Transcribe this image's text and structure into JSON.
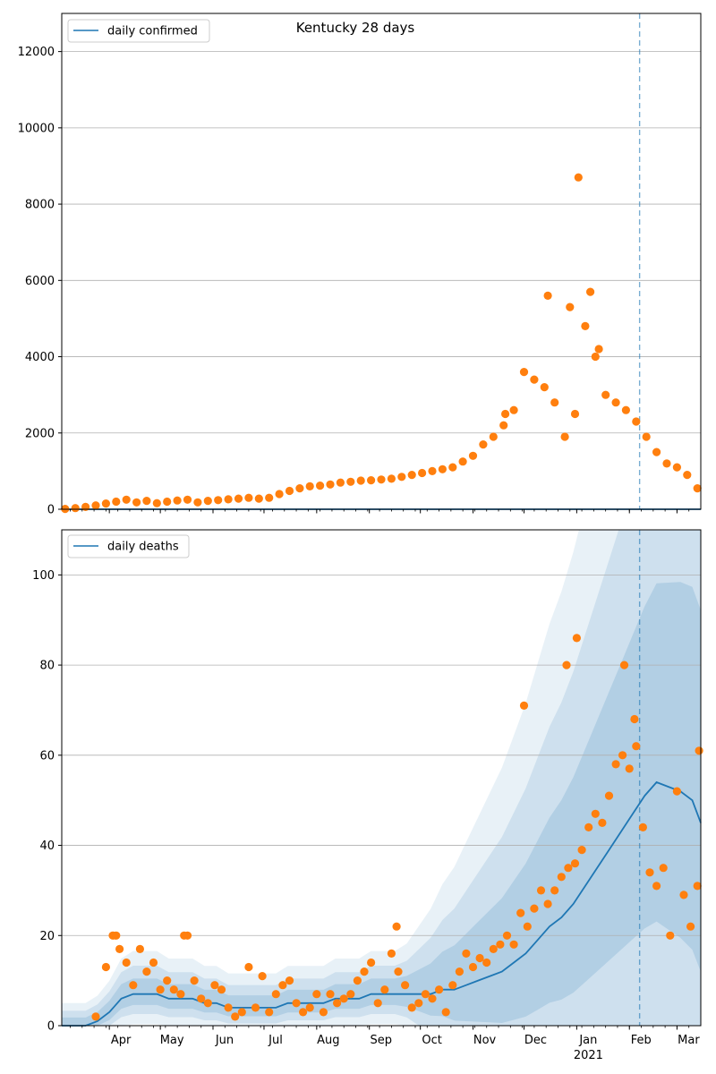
{
  "chart_data": [
    {
      "type": "scatter",
      "title": "Kentucky 28 days",
      "legend": [
        "daily confirmed"
      ],
      "legend_position": "top-left",
      "grid": "horizontal",
      "ylim": [
        0,
        13000
      ],
      "yticks": [
        0,
        2000,
        4000,
        6000,
        8000,
        10000,
        12000
      ],
      "xlim": [
        "2020-03-04",
        "2021-03-15"
      ],
      "vline": "2021-02-07",
      "series": [
        {
          "name": "daily confirmed",
          "kind": "line",
          "x": [
            "2020-03-04",
            "2020-04-01",
            "2020-05-01",
            "2020-06-01",
            "2020-07-01",
            "2020-08-01",
            "2020-09-01",
            "2020-10-01",
            "2020-11-01",
            "2020-12-01",
            "2021-01-01",
            "2021-02-01",
            "2021-03-15"
          ],
          "y": [
            0,
            0,
            0,
            0,
            0,
            0,
            0,
            0,
            0,
            0,
            0,
            0,
            0
          ]
        },
        {
          "kind": "points",
          "x": [
            "2020-03-06",
            "2020-03-12",
            "2020-03-18",
            "2020-03-24",
            "2020-03-30",
            "2020-04-05",
            "2020-04-11",
            "2020-04-17",
            "2020-04-23",
            "2020-04-29",
            "2020-05-05",
            "2020-05-11",
            "2020-05-17",
            "2020-05-23",
            "2020-05-29",
            "2020-06-04",
            "2020-06-10",
            "2020-06-16",
            "2020-06-22",
            "2020-06-28",
            "2020-07-04",
            "2020-07-10",
            "2020-07-16",
            "2020-07-22",
            "2020-07-28",
            "2020-08-03",
            "2020-08-09",
            "2020-08-15",
            "2020-08-21",
            "2020-08-27",
            "2020-09-02",
            "2020-09-08",
            "2020-09-14",
            "2020-09-20",
            "2020-09-26",
            "2020-10-02",
            "2020-10-08",
            "2020-10-14",
            "2020-10-20",
            "2020-10-26",
            "2020-11-01",
            "2020-11-07",
            "2020-11-13",
            "2020-11-19",
            "2020-11-25",
            "2020-12-01",
            "2020-12-07",
            "2020-12-13",
            "2020-12-19",
            "2020-12-25",
            "2020-12-31",
            "2021-01-06",
            "2021-01-12",
            "2021-01-18",
            "2021-01-24",
            "2021-01-30",
            "2021-02-05",
            "2021-02-11",
            "2021-02-17",
            "2021-02-23",
            "2021-03-01",
            "2021-03-07",
            "2021-03-13",
            "2021-01-02",
            "2020-11-20",
            "2021-01-09",
            "2020-12-15",
            "2020-12-28",
            "2021-01-14"
          ],
          "y": [
            10,
            30,
            60,
            100,
            150,
            200,
            250,
            180,
            220,
            160,
            200,
            230,
            250,
            180,
            220,
            240,
            260,
            280,
            300,
            280,
            300,
            400,
            480,
            550,
            600,
            620,
            650,
            700,
            720,
            750,
            760,
            780,
            800,
            850,
            900,
            950,
            1000,
            1050,
            1100,
            1250,
            1400,
            1700,
            1900,
            2200,
            2600,
            3600,
            3400,
            3200,
            2800,
            1900,
            2500,
            4800,
            4000,
            3000,
            2800,
            2600,
            2300,
            1900,
            1500,
            1200,
            1100,
            900,
            550,
            8700,
            2500,
            5700,
            5600,
            5300,
            4200
          ]
        }
      ]
    },
    {
      "type": "line",
      "legend": [
        "daily deaths"
      ],
      "legend_position": "top-left",
      "grid": "horizontal",
      "ylim": [
        0,
        110
      ],
      "yticks": [
        0,
        20,
        40,
        60,
        80,
        100
      ],
      "xlim": [
        "2020-03-04",
        "2021-03-15"
      ],
      "xtick_labels": [
        "Apr",
        "May",
        "Jun",
        "Jul",
        "Aug",
        "Sep",
        "Oct",
        "Nov",
        "Dec",
        "Jan",
        "Feb",
        "Mar"
      ],
      "xtick_year_label": "2021",
      "vline": "2021-02-07",
      "series": [
        {
          "name": "daily deaths",
          "kind": "line",
          "x": [
            "2020-03-04",
            "2020-03-18",
            "2020-03-25",
            "2020-04-01",
            "2020-04-08",
            "2020-04-15",
            "2020-04-22",
            "2020-04-29",
            "2020-05-06",
            "2020-05-13",
            "2020-05-20",
            "2020-05-27",
            "2020-06-03",
            "2020-06-10",
            "2020-06-17",
            "2020-06-24",
            "2020-07-01",
            "2020-07-08",
            "2020-07-15",
            "2020-07-22",
            "2020-07-29",
            "2020-08-05",
            "2020-08-12",
            "2020-08-19",
            "2020-08-26",
            "2020-09-02",
            "2020-09-09",
            "2020-09-16",
            "2020-09-23",
            "2020-09-30",
            "2020-10-07",
            "2020-10-14",
            "2020-10-21",
            "2020-10-28",
            "2020-11-04",
            "2020-11-11",
            "2020-11-18",
            "2020-11-25",
            "2020-12-02",
            "2020-12-09",
            "2020-12-16",
            "2020-12-23",
            "2020-12-30",
            "2021-01-06",
            "2021-01-13",
            "2021-01-20",
            "2021-01-27",
            "2021-02-03",
            "2021-02-10",
            "2021-02-17",
            "2021-02-24",
            "2021-03-03",
            "2021-03-10",
            "2021-03-15"
          ],
          "y": [
            0,
            0,
            1,
            3,
            6,
            7,
            7,
            7,
            6,
            6,
            6,
            5,
            5,
            4,
            4,
            4,
            4,
            4,
            5,
            5,
            5,
            5,
            6,
            6,
            6,
            7,
            7,
            7,
            7,
            7,
            7,
            8,
            8,
            9,
            10,
            11,
            12,
            14,
            16,
            19,
            22,
            24,
            27,
            31,
            35,
            39,
            43,
            47,
            51,
            54,
            53,
            52,
            50,
            45
          ]
        },
        {
          "kind": "points",
          "x": [
            "2020-03-24",
            "2020-03-30",
            "2020-04-03",
            "2020-04-07",
            "2020-04-11",
            "2020-04-15",
            "2020-04-19",
            "2020-04-23",
            "2020-04-27",
            "2020-05-01",
            "2020-05-05",
            "2020-05-09",
            "2020-05-13",
            "2020-05-17",
            "2020-05-21",
            "2020-05-25",
            "2020-05-29",
            "2020-06-02",
            "2020-06-06",
            "2020-06-10",
            "2020-06-14",
            "2020-06-18",
            "2020-06-22",
            "2020-06-26",
            "2020-06-30",
            "2020-07-04",
            "2020-07-08",
            "2020-07-12",
            "2020-07-16",
            "2020-07-20",
            "2020-07-24",
            "2020-07-28",
            "2020-08-01",
            "2020-08-05",
            "2020-08-09",
            "2020-08-13",
            "2020-08-17",
            "2020-08-21",
            "2020-08-25",
            "2020-08-29",
            "2020-09-02",
            "2020-09-06",
            "2020-09-10",
            "2020-09-14",
            "2020-09-18",
            "2020-09-22",
            "2020-09-26",
            "2020-09-30",
            "2020-10-04",
            "2020-10-08",
            "2020-10-12",
            "2020-10-16",
            "2020-10-20",
            "2020-10-24",
            "2020-10-28",
            "2020-11-01",
            "2020-11-05",
            "2020-11-09",
            "2020-11-13",
            "2020-11-17",
            "2020-11-21",
            "2020-11-25",
            "2020-11-29",
            "2020-12-03",
            "2020-12-07",
            "2020-12-11",
            "2020-12-15",
            "2020-12-19",
            "2020-12-23",
            "2020-12-27",
            "2020-12-31",
            "2021-01-04",
            "2021-01-08",
            "2021-01-12",
            "2021-01-16",
            "2021-01-20",
            "2021-01-24",
            "2021-01-28",
            "2021-02-01",
            "2021-02-05",
            "2021-02-09",
            "2021-02-13",
            "2021-02-17",
            "2021-02-21",
            "2021-02-25",
            "2021-03-01",
            "2021-03-05",
            "2021-03-09",
            "2021-03-13",
            "2020-04-05",
            "2020-05-15",
            "2020-09-17",
            "2020-12-01",
            "2020-12-26",
            "2021-01-01",
            "2021-01-29",
            "2021-02-04",
            "2021-03-14"
          ],
          "y": [
            2,
            13,
            20,
            17,
            14,
            9,
            17,
            12,
            14,
            8,
            10,
            8,
            7,
            20,
            10,
            6,
            5,
            9,
            8,
            4,
            2,
            3,
            13,
            4,
            11,
            3,
            7,
            9,
            10,
            5,
            3,
            4,
            7,
            3,
            7,
            5,
            6,
            7,
            10,
            12,
            14,
            5,
            8,
            16,
            12,
            9,
            4,
            5,
            7,
            6,
            8,
            3,
            9,
            12,
            16,
            13,
            15,
            14,
            17,
            18,
            20,
            18,
            25,
            22,
            26,
            30,
            27,
            30,
            33,
            35,
            36,
            39,
            44,
            47,
            45,
            51,
            58,
            60,
            57,
            62,
            44,
            34,
            31,
            35,
            20,
            52,
            29,
            22,
            31,
            20,
            20,
            22,
            71,
            80,
            86,
            80,
            68,
            61
          ]
        }
      ]
    }
  ]
}
